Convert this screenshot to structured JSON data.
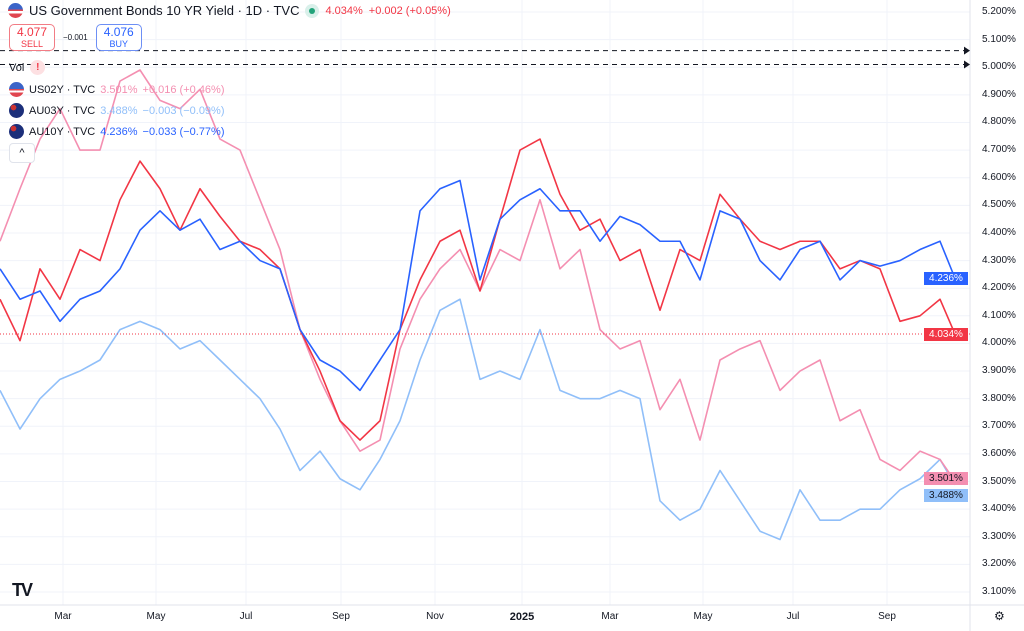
{
  "header": {
    "title": "US Government Bonds 10 YR Yield · 1D · TVC",
    "price": "4.034%",
    "change": "+0.002 (+0.05%)"
  },
  "trade": {
    "sell_price": "4.077",
    "sell_label": "SELL",
    "spread": "−0.001",
    "buy_price": "4.076",
    "buy_label": "BUY"
  },
  "volume": {
    "label": "Vol",
    "warning": "!"
  },
  "legend": [
    {
      "symbol": "US02Y · TVC",
      "value": "3.501%",
      "change": "+0.016 (+0.46%)",
      "color": "#f48fb1",
      "flag": "us"
    },
    {
      "symbol": "AU03Y · TVC",
      "value": "3.488%",
      "change": "−0.003 (−0.09%)",
      "color": "#90bff9",
      "flag": "au"
    },
    {
      "symbol": "AU10Y · TVC",
      "value": "4.236%",
      "change": "−0.033 (−0.77%)",
      "color": "#2962ff",
      "flag": "au"
    }
  ],
  "collapse_icon": "^",
  "chart_data": {
    "type": "line",
    "title": "US Government Bonds 10 YR Yield",
    "ylim": [
      3.1,
      5.2
    ],
    "y_ticks": [
      "5.200%",
      "5.100%",
      "5.000%",
      "4.900%",
      "4.800%",
      "4.700%",
      "4.600%",
      "4.500%",
      "4.400%",
      "4.300%",
      "4.200%",
      "4.100%",
      "4.000%",
      "3.900%",
      "3.800%",
      "3.700%",
      "3.600%",
      "3.500%",
      "3.400%",
      "3.300%",
      "3.200%",
      "3.100%"
    ],
    "x_ticks": [
      "Mar",
      "May",
      "Jul",
      "Sep",
      "Nov",
      "2025",
      "Mar",
      "May",
      "Jul",
      "Sep"
    ],
    "grid": true,
    "series": [
      {
        "name": "US10Y",
        "color": "#f23645",
        "last": "4.034%",
        "values": [
          4.16,
          4.01,
          4.27,
          4.16,
          4.34,
          4.3,
          4.52,
          4.66,
          4.56,
          4.41,
          4.56,
          4.46,
          4.37,
          4.34,
          4.27,
          4.05,
          3.9,
          3.72,
          3.65,
          3.72,
          4.05,
          4.23,
          4.37,
          4.41,
          4.19,
          4.45,
          4.7,
          4.74,
          4.54,
          4.41,
          4.45,
          4.3,
          4.34,
          4.12,
          4.34,
          4.3,
          4.54,
          4.45,
          4.37,
          4.34,
          4.37,
          4.37,
          4.27,
          4.3,
          4.27,
          4.08,
          4.1,
          4.16,
          4.034
        ]
      },
      {
        "name": "AU10Y",
        "color": "#2962ff",
        "last": "4.236%",
        "values": [
          4.27,
          4.16,
          4.19,
          4.08,
          4.16,
          4.19,
          4.27,
          4.41,
          4.48,
          4.41,
          4.45,
          4.34,
          4.37,
          4.3,
          4.27,
          4.05,
          3.94,
          3.9,
          3.83,
          3.94,
          4.05,
          4.48,
          4.56,
          4.59,
          4.23,
          4.45,
          4.52,
          4.56,
          4.48,
          4.48,
          4.37,
          4.46,
          4.43,
          4.37,
          4.37,
          4.23,
          4.48,
          4.45,
          4.3,
          4.23,
          4.34,
          4.37,
          4.23,
          4.3,
          4.28,
          4.3,
          4.34,
          4.37,
          4.236
        ]
      },
      {
        "name": "US02Y",
        "color": "#f48fb1",
        "last": "3.501%",
        "values": [
          4.37,
          4.56,
          4.74,
          4.85,
          4.7,
          4.7,
          4.95,
          4.99,
          4.88,
          4.85,
          4.92,
          4.74,
          4.7,
          4.52,
          4.34,
          4.05,
          3.87,
          3.72,
          3.61,
          3.65,
          3.98,
          4.16,
          4.27,
          4.34,
          4.19,
          4.34,
          4.3,
          4.52,
          4.27,
          4.34,
          4.05,
          3.98,
          4.01,
          3.76,
          3.87,
          3.65,
          3.94,
          3.98,
          4.01,
          3.83,
          3.9,
          3.94,
          3.72,
          3.76,
          3.58,
          3.54,
          3.61,
          3.58,
          3.501
        ]
      },
      {
        "name": "AU03Y",
        "color": "#90bff9",
        "last": "3.488%",
        "values": [
          3.83,
          3.69,
          3.8,
          3.87,
          3.9,
          3.94,
          4.05,
          4.08,
          4.05,
          3.98,
          4.01,
          3.94,
          3.87,
          3.8,
          3.69,
          3.54,
          3.61,
          3.51,
          3.47,
          3.58,
          3.72,
          3.94,
          4.12,
          4.16,
          3.87,
          3.9,
          3.87,
          4.05,
          3.83,
          3.8,
          3.8,
          3.83,
          3.8,
          3.43,
          3.36,
          3.4,
          3.54,
          3.43,
          3.32,
          3.29,
          3.47,
          3.36,
          3.36,
          3.4,
          3.4,
          3.47,
          3.51,
          3.58,
          3.488
        ]
      }
    ],
    "reference_lines": [
      5.06,
      5.01
    ]
  },
  "settings_icon": "⚙"
}
